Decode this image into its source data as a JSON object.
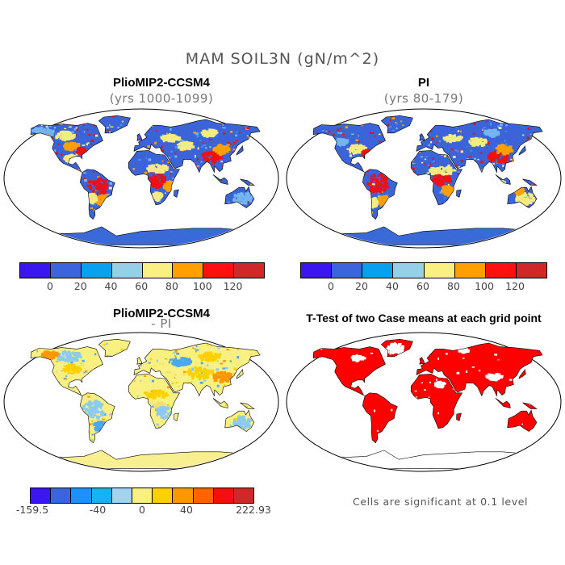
{
  "figure": {
    "title": "MAM SOIL3N (gN/m^2)",
    "note": "Cells are significant at 0.1 level"
  },
  "panels": [
    {
      "title": "PlioMIP2-CCSM4",
      "subtitle": "(yrs 1000-1099)",
      "scheme": [
        "#4a8ee8",
        "#74b4f0",
        "#f4ec80",
        "#ffa000",
        "#f01010",
        "#d01818"
      ],
      "antarctica": "#3a6ad8",
      "land_base": "#3a64d8"
    },
    {
      "title": "PI",
      "subtitle": "(yrs 80-179)",
      "scheme": [
        "#4a8ee8",
        "#74b4f0",
        "#f4ec80",
        "#ffa000",
        "#f01010",
        "#d01818"
      ],
      "antarctica": "#3a6ad8",
      "land_base": "#3a64d8"
    },
    {
      "title": "PlioMIP2-CCSM4",
      "subtitle": "- PI",
      "scheme": [
        "#f8f080",
        "#8ccaf0",
        "#ffd000",
        "#ff9800",
        "#4aa8f0",
        "#f4e070"
      ],
      "antarctica": "#f8f090",
      "land_base": "#f8f080"
    },
    {
      "title": "T-Test of two Case means at each grid point",
      "subtitle": "",
      "scheme": [
        "#ff0000",
        "#ff0000",
        "#ff0000",
        "#ffffff",
        "#ff0000",
        "#ff0000"
      ],
      "antarctica": "#ffffff",
      "land_base": "#ff0000"
    }
  ],
  "colorbars": [
    {
      "name": "absolute",
      "colors": [
        "#3c16f0",
        "#3c64dc",
        "#0aa0f0",
        "#96d0e8",
        "#f8f080",
        "#ffa000",
        "#ff1010",
        "#d02828"
      ],
      "labels": [
        "0",
        "20",
        "40",
        "60",
        "80",
        "100",
        "120"
      ]
    },
    {
      "name": "absolute",
      "colors": [
        "#3c16f0",
        "#3c64dc",
        "#0aa0f0",
        "#96d0e8",
        "#f8f080",
        "#ffa000",
        "#ff1010",
        "#d02828"
      ],
      "labels": [
        "0",
        "20",
        "40",
        "60",
        "80",
        "100",
        "120"
      ]
    },
    {
      "name": "difference",
      "colors": [
        "#3c16f0",
        "#3c64dc",
        "#1e90ff",
        "#14b4f0",
        "#a0d4f0",
        "#f8f080",
        "#ffd000",
        "#ff9800",
        "#ff6400",
        "#f01010",
        "#d02828"
      ],
      "labels": [
        "-159.5",
        "-40",
        "0",
        "40",
        "222.93"
      ]
    }
  ]
}
